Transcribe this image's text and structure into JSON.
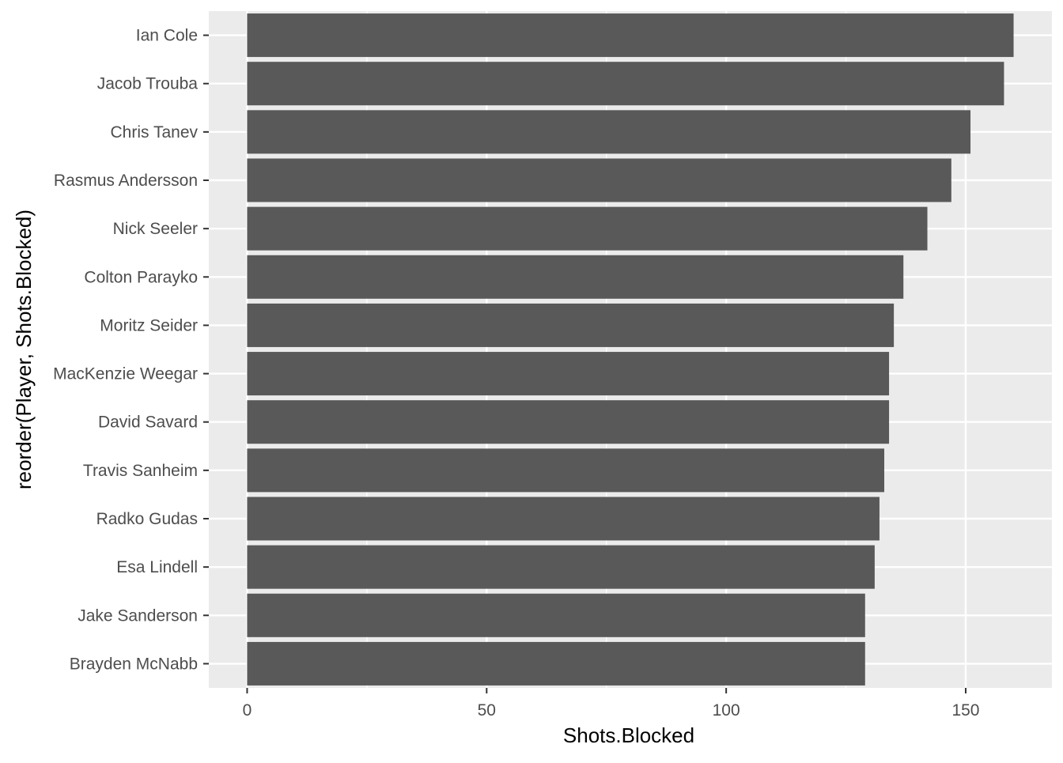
{
  "chart_data": {
    "type": "bar",
    "orientation": "horizontal",
    "title": "",
    "xlabel": "Shots.Blocked",
    "ylabel": "reorder(Player, Shots.Blocked)",
    "categories": [
      "Ian Cole",
      "Jacob Trouba",
      "Chris Tanev",
      "Rasmus Andersson",
      "Nick Seeler",
      "Colton Parayko",
      "Moritz Seider",
      "MacKenzie Weegar",
      "David Savard",
      "Travis Sanheim",
      "Radko Gudas",
      "Esa Lindell",
      "Jake Sanderson",
      "Brayden McNabb"
    ],
    "values": [
      160,
      158,
      151,
      147,
      142,
      137,
      135,
      134,
      134,
      133,
      132,
      131,
      129,
      129
    ],
    "xlim": [
      -8,
      168
    ],
    "xticks": [
      0,
      50,
      100,
      150
    ],
    "xtick_labels": [
      "0",
      "50",
      "100",
      "150"
    ],
    "grid": true,
    "legend": "none",
    "colors": {
      "bar": "#595959",
      "panel": "#ebebeb",
      "grid_major": "#ffffff",
      "grid_minor": "#f5f5f5",
      "tick": "#333333",
      "tick_label": "#4d4d4d"
    }
  }
}
